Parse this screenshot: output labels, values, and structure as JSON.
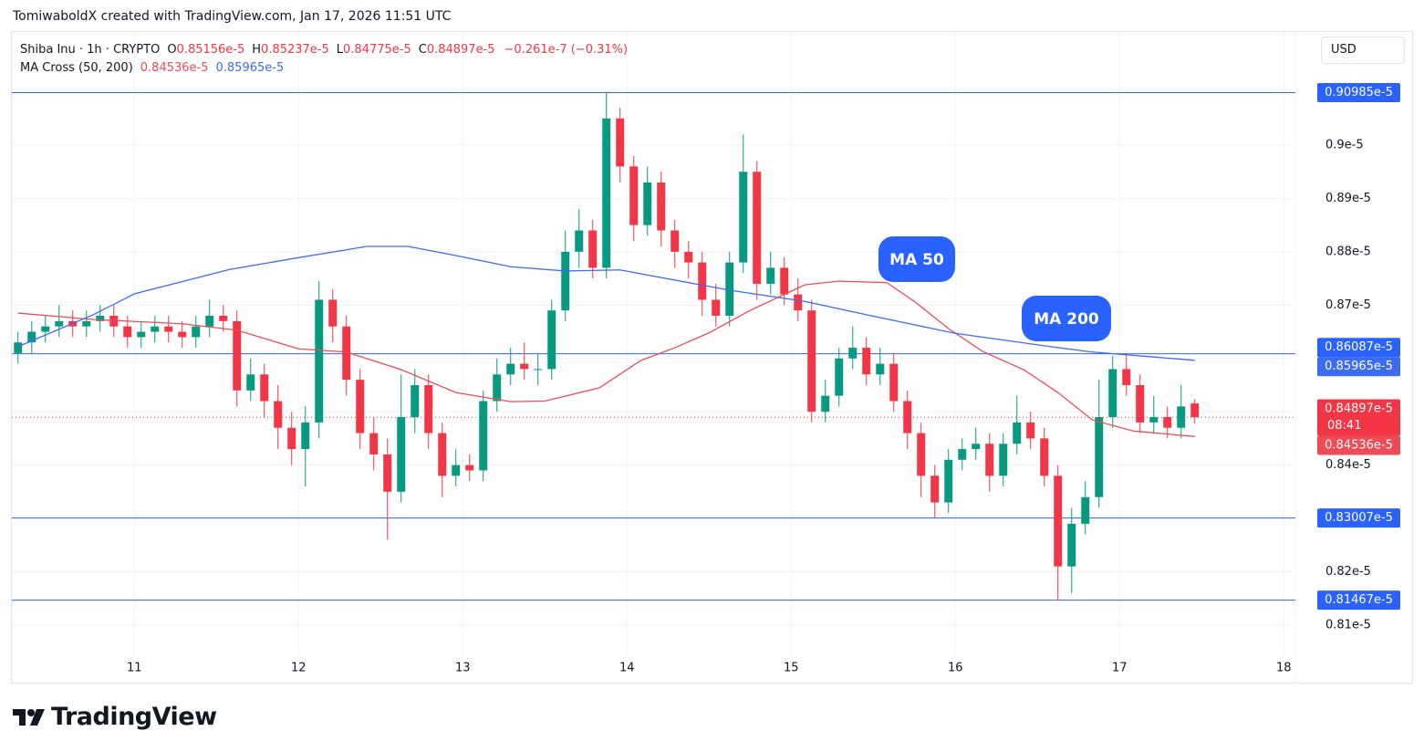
{
  "header": {
    "attribution": "TomiwaboldX created with TradingView.com, Jan 17, 2026 11:51 UTC"
  },
  "legend": {
    "symbol": "Shiba Inu · 1h · CRYPTO",
    "ohlc": [
      {
        "key": "O",
        "value": "0.85156e-5"
      },
      {
        "key": "H",
        "value": "0.85237e-5"
      },
      {
        "key": "L",
        "value": "0.84775e-5"
      },
      {
        "key": "C",
        "value": "0.84897e-5"
      }
    ],
    "change": "−0.261e-7 (−0.31%)",
    "indicator": "MA Cross (50, 200)",
    "indicator_values": [
      "0.84536e-5",
      "0.85965e-5"
    ]
  },
  "currency": "USD",
  "footer": {
    "brand": "TradingView"
  },
  "chart_data": {
    "type": "candlestick",
    "up_color": "#089981",
    "down_color": "#f23645",
    "x": [
      -17,
      -15,
      -13,
      -11,
      -9,
      -7,
      -5,
      -3,
      -1,
      1,
      3,
      5,
      7,
      9,
      11,
      13,
      15,
      17,
      19,
      21,
      23,
      25,
      27,
      29,
      31,
      33,
      35,
      37,
      39,
      41,
      43,
      45,
      47,
      49,
      51,
      53,
      55,
      57,
      59,
      61,
      63,
      65,
      67,
      69,
      71,
      73,
      75,
      77,
      79,
      81,
      83,
      85,
      87,
      89,
      91,
      93,
      95,
      97,
      99,
      101,
      103,
      105,
      107,
      109,
      111,
      113,
      115,
      117,
      119,
      121,
      123,
      125,
      127,
      129,
      131,
      133,
      135,
      137,
      139,
      141,
      143,
      145,
      147,
      149,
      151,
      153,
      155
    ],
    "open": [
      0.861,
      0.863,
      0.865,
      0.866,
      0.867,
      0.866,
      0.867,
      0.868,
      0.866,
      0.864,
      0.865,
      0.866,
      0.865,
      0.864,
      0.866,
      0.868,
      0.867,
      0.854,
      0.857,
      0.852,
      0.847,
      0.843,
      0.848,
      0.871,
      0.866,
      0.856,
      0.846,
      0.842,
      0.835,
      0.849,
      0.855,
      0.846,
      0.838,
      0.84,
      0.839,
      0.852,
      0.857,
      0.859,
      0.858,
      0.858,
      0.869,
      0.88,
      0.884,
      0.877,
      0.905,
      0.896,
      0.885,
      0.893,
      0.884,
      0.88,
      0.878,
      0.871,
      0.868,
      0.878,
      0.895,
      0.874,
      0.877,
      0.872,
      0.869,
      0.85,
      0.853,
      0.86,
      0.862,
      0.857,
      0.859,
      0.852,
      0.846,
      0.838,
      0.833,
      0.841,
      0.843,
      0.844,
      0.838,
      0.844,
      0.848,
      0.845,
      0.838,
      0.821,
      0.829,
      0.834,
      0.849,
      0.858,
      0.855,
      0.848,
      0.849,
      0.847,
      0.85156
    ],
    "high": [
      0.865,
      0.867,
      0.868,
      0.87,
      0.869,
      0.869,
      0.87,
      0.87,
      0.868,
      0.867,
      0.868,
      0.868,
      0.867,
      0.868,
      0.871,
      0.87,
      0.869,
      0.86,
      0.859,
      0.855,
      0.85,
      0.851,
      0.8745,
      0.873,
      0.868,
      0.858,
      0.849,
      0.845,
      0.857,
      0.858,
      0.857,
      0.848,
      0.843,
      0.842,
      0.854,
      0.86,
      0.862,
      0.863,
      0.861,
      0.871,
      0.884,
      0.888,
      0.886,
      0.91,
      0.907,
      0.898,
      0.896,
      0.895,
      0.886,
      0.882,
      0.88,
      0.874,
      0.88,
      0.902,
      0.897,
      0.88,
      0.879,
      0.875,
      0.871,
      0.856,
      0.862,
      0.866,
      0.864,
      0.862,
      0.861,
      0.854,
      0.848,
      0.84,
      0.843,
      0.845,
      0.847,
      0.846,
      0.846,
      0.853,
      0.85,
      0.847,
      0.84,
      0.832,
      0.837,
      0.856,
      0.8605,
      0.861,
      0.857,
      0.853,
      0.851,
      0.855,
      0.85237
    ],
    "low": [
      0.859,
      0.861,
      0.863,
      0.864,
      0.864,
      0.864,
      0.865,
      0.864,
      0.862,
      0.862,
      0.863,
      0.863,
      0.862,
      0.862,
      0.864,
      0.865,
      0.851,
      0.852,
      0.849,
      0.843,
      0.84,
      0.836,
      0.845,
      0.863,
      0.853,
      0.843,
      0.839,
      0.826,
      0.833,
      0.846,
      0.843,
      0.834,
      0.836,
      0.837,
      0.837,
      0.85,
      0.855,
      0.856,
      0.855,
      0.856,
      0.867,
      0.877,
      0.875,
      0.875,
      0.893,
      0.882,
      0.883,
      0.881,
      0.877,
      0.875,
      0.868,
      0.866,
      0.866,
      0.876,
      0.871,
      0.872,
      0.87,
      0.867,
      0.848,
      0.848,
      0.851,
      0.858,
      0.855,
      0.855,
      0.85,
      0.843,
      0.834,
      0.83,
      0.831,
      0.839,
      0.841,
      0.835,
      0.836,
      0.842,
      0.843,
      0.836,
      0.8147,
      0.816,
      0.827,
      0.832,
      0.847,
      0.853,
      0.846,
      0.846,
      0.845,
      0.845,
      0.84775
    ],
    "close": [
      0.863,
      0.865,
      0.866,
      0.867,
      0.866,
      0.867,
      0.868,
      0.866,
      0.864,
      0.865,
      0.866,
      0.865,
      0.864,
      0.866,
      0.868,
      0.867,
      0.854,
      0.857,
      0.852,
      0.847,
      0.843,
      0.848,
      0.871,
      0.866,
      0.856,
      0.846,
      0.842,
      0.835,
      0.849,
      0.855,
      0.846,
      0.838,
      0.84,
      0.839,
      0.852,
      0.857,
      0.859,
      0.858,
      0.858,
      0.869,
      0.88,
      0.884,
      0.877,
      0.905,
      0.896,
      0.885,
      0.893,
      0.884,
      0.88,
      0.878,
      0.871,
      0.868,
      0.878,
      0.895,
      0.874,
      0.877,
      0.872,
      0.869,
      0.85,
      0.853,
      0.86,
      0.862,
      0.857,
      0.859,
      0.852,
      0.846,
      0.838,
      0.833,
      0.841,
      0.843,
      0.844,
      0.838,
      0.844,
      0.848,
      0.845,
      0.838,
      0.821,
      0.829,
      0.834,
      0.849,
      0.858,
      0.855,
      0.848,
      0.849,
      0.847,
      0.851,
      0.84897
    ],
    "series": [
      {
        "name": "MA 50",
        "color": "#ef4b56",
        "x": [
          -17,
          -6,
          7,
          15,
          24,
          31,
          39,
          47,
          55,
          60,
          68,
          74,
          79,
          84,
          90,
          98,
          103,
          110,
          114,
          119,
          124,
          130,
          135,
          140,
          146,
          155
        ],
        "values": [
          0.8685,
          0.8673,
          0.8665,
          0.8653,
          0.8618,
          0.8612,
          0.8579,
          0.8536,
          0.8519,
          0.852,
          0.8545,
          0.8596,
          0.862,
          0.8648,
          0.869,
          0.8738,
          0.8745,
          0.8742,
          0.8707,
          0.8656,
          0.8613,
          0.8579,
          0.8536,
          0.8485,
          0.8464,
          0.84536
        ]
      },
      {
        "name": "MA 200",
        "color": "#3b6cf2",
        "x": [
          -17,
          -6,
          0,
          14,
          24,
          34,
          40,
          47,
          55,
          63,
          71,
          76,
          87,
          98,
          107,
          120,
          134,
          140,
          155
        ],
        "values": [
          0.8622,
          0.8682,
          0.8721,
          0.8767,
          0.8789,
          0.881,
          0.881,
          0.8793,
          0.8772,
          0.8764,
          0.8766,
          0.8754,
          0.8728,
          0.8707,
          0.8682,
          0.8647,
          0.8622,
          0.8612,
          0.85965
        ]
      }
    ],
    "xlim": [
      -17.9,
      169.7
    ],
    "xticks": [
      {
        "value": 0,
        "label": "11"
      },
      {
        "value": 24,
        "label": "12"
      },
      {
        "value": 48,
        "label": "13"
      },
      {
        "value": 72,
        "label": "14"
      },
      {
        "value": 96,
        "label": "15"
      },
      {
        "value": 120,
        "label": "16"
      },
      {
        "value": 144,
        "label": "17"
      },
      {
        "value": 168,
        "label": "18"
      }
    ],
    "ylim": [
      0.79921,
      0.92122
    ],
    "yticks": [
      {
        "value": 0.81,
        "label": "0.81e-5"
      },
      {
        "value": 0.82,
        "label": "0.82e-5"
      },
      {
        "value": 0.83,
        "label": "0.83e-5"
      },
      {
        "value": 0.84,
        "label": "0.84e-5"
      },
      {
        "value": 0.85,
        "label": "0.85e-5"
      },
      {
        "value": 0.86,
        "label": "0.86e-5"
      },
      {
        "value": 0.87,
        "label": "0.87e-5"
      },
      {
        "value": 0.88,
        "label": "0.88e-5"
      },
      {
        "value": 0.89,
        "label": "0.89e-5"
      },
      {
        "value": 0.9,
        "label": "0.9e-5"
      }
    ],
    "grid": true,
    "levels": [
      {
        "value": 0.90985,
        "label": "0.90985e-5"
      },
      {
        "value": 0.86087,
        "label": "0.86087e-5"
      },
      {
        "value": 0.83007,
        "label": "0.83007e-5"
      },
      {
        "value": 0.81467,
        "label": "0.81467e-5"
      }
    ],
    "level_color": "#2962ff",
    "last_price": {
      "value": 0.84897,
      "label": "0.84897e-5"
    },
    "countdown": "08:41",
    "ma_labels": [
      {
        "value": 0.84536,
        "label": "0.84536e-5"
      },
      {
        "value": 0.85965,
        "label": "0.85965e-5"
      }
    ],
    "annotations": [
      "MA 50",
      "MA 200"
    ]
  }
}
